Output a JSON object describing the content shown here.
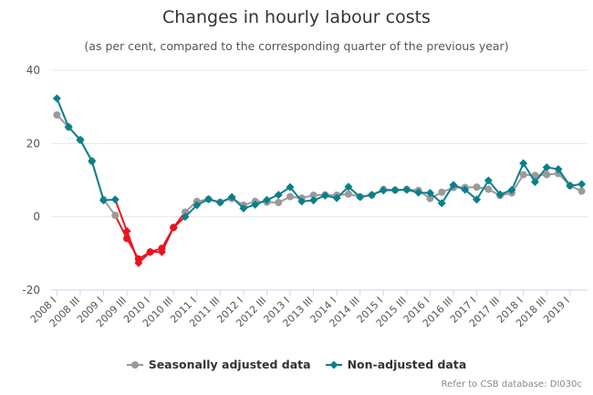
{
  "chart_data": {
    "type": "line",
    "title": "Changes in hourly labour costs",
    "subtitle": "(as per cent, compared to the corresponding quarter of the previous year)",
    "xlabel": "",
    "ylabel": "",
    "ylim": [
      -20,
      40
    ],
    "yticks": [
      -20,
      0,
      20,
      40
    ],
    "grid": true,
    "legend_position": "bottom-center",
    "categories": [
      "2008 I",
      "2008 II",
      "2008 III",
      "2008 IV",
      "2009 I",
      "2009 II",
      "2009 III",
      "2009 IV",
      "2010 I",
      "2010 II",
      "2010 III",
      "2010 IV",
      "2011 I",
      "2011 II",
      "2011 III",
      "2011 IV",
      "2012 I",
      "2012 II",
      "2012 III",
      "2012 IV",
      "2013 I",
      "2013 II",
      "2013 III",
      "2013 IV",
      "2014 I",
      "2014 II",
      "2014 III",
      "2014 IV",
      "2015 I",
      "2015 II",
      "2015 III",
      "2015 IV",
      "2016 I",
      "2016 II",
      "2016 III",
      "2016 IV",
      "2017 I",
      "2017 II",
      "2017 III",
      "2017 IV",
      "2018 I",
      "2018 II",
      "2018 III",
      "2018 IV",
      "2019 I",
      "2019 II"
    ],
    "tick_labels": [
      "2008 I",
      "2008 III",
      "2009 I",
      "2009 III",
      "2010 I",
      "2010 III",
      "2011 I",
      "2011 III",
      "2012 I",
      "2012 III",
      "2013 I",
      "2013 III",
      "2014 I",
      "2014 III",
      "2015 I",
      "2015 III",
      "2016 I",
      "2016 III",
      "2017 I",
      "2017 III",
      "2018 I",
      "2018 III",
      "2019 I"
    ],
    "negative_color": "#e8141e",
    "series": [
      {
        "name": "Seasonally adjusted data",
        "color": "#9a9a9a",
        "marker": "circle",
        "values": [
          27.8,
          24.5,
          21.0,
          15.2,
          4.7,
          0.4,
          -5.9,
          -11.5,
          -9.6,
          -8.6,
          -2.9,
          1.3,
          4.2,
          4.8,
          4.0,
          5.0,
          3.2,
          4.2,
          4.0,
          3.9,
          5.5,
          5.1,
          5.9,
          6.0,
          5.9,
          6.2,
          5.5,
          5.9,
          7.5,
          7.3,
          7.5,
          7.2,
          5.0,
          6.7,
          8.0,
          8.0,
          8.1,
          7.5,
          5.8,
          6.5,
          11.5,
          11.3,
          11.5,
          11.8,
          8.5,
          7.0
        ]
      },
      {
        "name": "Non-adjusted data",
        "color": "#0a7f8c",
        "marker": "diamond",
        "values": [
          32.3,
          24.5,
          21.0,
          15.2,
          4.5,
          4.7,
          -3.9,
          -12.6,
          -9.6,
          -9.6,
          -2.9,
          0.0,
          3.2,
          4.8,
          3.9,
          5.4,
          2.3,
          3.3,
          4.6,
          6.0,
          8.1,
          4.2,
          4.5,
          5.8,
          5.1,
          8.2,
          5.4,
          6.0,
          7.2,
          7.3,
          7.4,
          6.6,
          6.5,
          3.7,
          8.7,
          7.4,
          4.7,
          9.9,
          6.1,
          7.3,
          14.6,
          9.5,
          13.5,
          13.0,
          8.5,
          8.9
        ]
      }
    ]
  },
  "credits": "Refer to CSB database: DI030c"
}
